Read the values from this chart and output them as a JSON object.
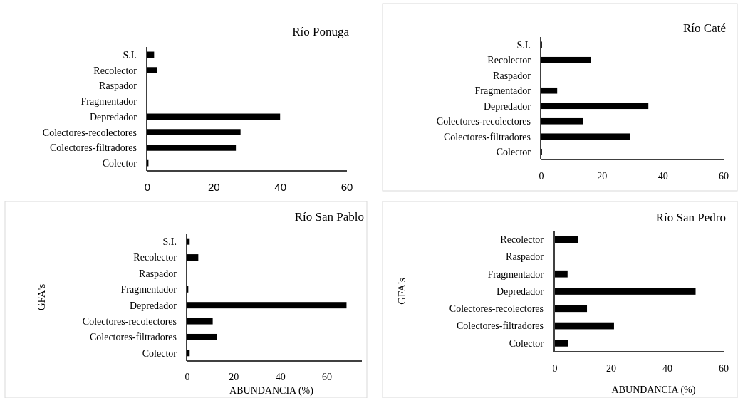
{
  "chart_data": [
    {
      "type": "bar",
      "orientation": "horizontal",
      "title": "Río Ponuga",
      "categories": [
        "S.I.",
        "Recolector",
        "Raspador",
        "Fragmentador",
        "Depredador",
        "Colectores-recolectores",
        "Colectores-filtradores",
        "Colector"
      ],
      "values": [
        2.0,
        2.9,
        0,
        0,
        39.9,
        28.0,
        26.6,
        0.3
      ],
      "color": "#000000",
      "xlim": [
        0,
        60
      ],
      "xticks": [
        0,
        20,
        40,
        60
      ],
      "grid": false
    },
    {
      "type": "bar",
      "orientation": "horizontal",
      "title": "Río Caté",
      "categories": [
        "S.I.",
        "Recolector",
        "Raspador",
        "Fragmentador",
        "Depredador",
        "Colectores-recolectores",
        "Colectores-filtradores",
        "Colector"
      ],
      "values": [
        0.2,
        16.3,
        0,
        5.2,
        35.2,
        13.6,
        29.1,
        0.2
      ],
      "color": "#000000",
      "xlim": [
        0,
        60
      ],
      "xticks": [
        0,
        20,
        40,
        60
      ],
      "grid": false
    },
    {
      "type": "bar",
      "orientation": "horizontal",
      "title": "Río San Pablo",
      "xlabel": "ABUNDANCIA (%)",
      "ylabel": "GFA's",
      "categories": [
        "S.I.",
        "Recolector",
        "Raspador",
        "Fragmentador",
        "Depredador",
        "Colectores-recolectores",
        "Colectores-filtradores",
        "Colector"
      ],
      "values": [
        1.0,
        4.7,
        0,
        0.4,
        68.4,
        10.9,
        12.6,
        1.0
      ],
      "color": "#000000",
      "xlim": [
        0,
        75
      ],
      "xticks": [
        0,
        20,
        40,
        60
      ],
      "grid": false
    },
    {
      "type": "bar",
      "orientation": "horizontal",
      "title": "Río San Pedro",
      "xlabel": "ABUNDANCIA (%)",
      "ylabel": "GFA's",
      "categories": [
        "Recolector",
        "Raspador",
        "Fragmentador",
        "Depredador",
        "Colectores-recolectores",
        "Colectores-filtradores",
        "Colector"
      ],
      "values": [
        8.2,
        0,
        4.5,
        50.0,
        11.4,
        21.0,
        4.8
      ],
      "color": "#000000",
      "xlim": [
        0,
        60
      ],
      "xticks": [
        0,
        20,
        40,
        60
      ],
      "grid": false
    }
  ]
}
